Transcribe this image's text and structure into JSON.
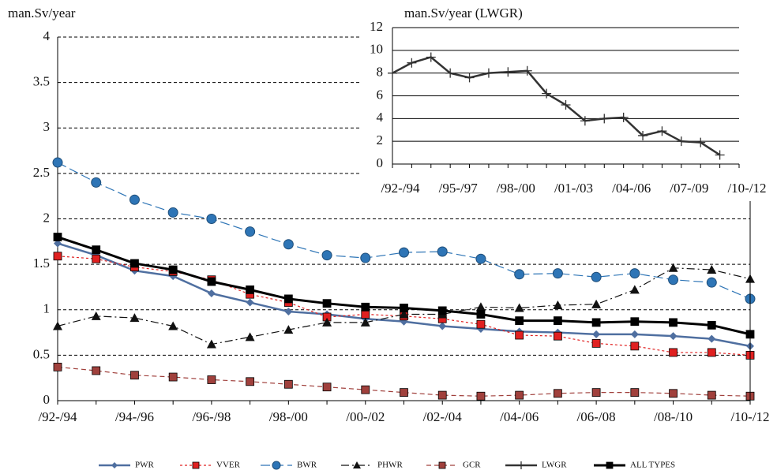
{
  "chart_data": [
    {
      "type": "line",
      "y_label": "man.Sv/year",
      "categories": [
        "/92-/94",
        null,
        "/94-/96",
        null,
        "/96-/98",
        null,
        "/98-/00",
        null,
        "/00-/02",
        null,
        "/02-/04",
        null,
        "/04-/06",
        null,
        "/06-/08",
        null,
        "/08-/10",
        null,
        "/10-/12"
      ],
      "ylim": [
        0,
        4
      ],
      "yticks": [
        0,
        0.5,
        1,
        1.5,
        2,
        2.5,
        3,
        3.5,
        4
      ],
      "grid": true,
      "series": [
        {
          "name": "PWR",
          "color": "#4f6fa0",
          "marker": "diamond",
          "dash": "solid",
          "values": [
            1.73,
            1.6,
            1.43,
            1.37,
            1.18,
            1.08,
            0.98,
            0.95,
            0.9,
            0.87,
            0.82,
            0.79,
            0.76,
            0.75,
            0.73,
            0.73,
            0.71,
            0.68,
            0.6
          ]
        },
        {
          "name": "VVER",
          "color": "#e02020",
          "marker": "square",
          "dash": "short",
          "values": [
            1.59,
            1.56,
            1.47,
            1.42,
            1.33,
            1.17,
            1.08,
            0.92,
            0.95,
            0.93,
            0.9,
            0.84,
            0.72,
            0.71,
            0.63,
            0.6,
            0.53,
            0.53,
            0.5
          ]
        },
        {
          "name": "BWR",
          "color": "#2e75b6",
          "marker": "circle",
          "dash": "long",
          "values": [
            2.62,
            2.4,
            2.21,
            2.07,
            2.0,
            1.86,
            1.72,
            1.6,
            1.57,
            1.63,
            1.64,
            1.56,
            1.39,
            1.4,
            1.36,
            1.4,
            1.33,
            1.3,
            1.12
          ]
        },
        {
          "name": "PHWR",
          "color": "#111111",
          "marker": "triangle",
          "dash": "dashdot",
          "values": [
            0.82,
            0.93,
            0.91,
            0.82,
            0.62,
            0.7,
            0.78,
            0.86,
            0.86,
            0.95,
            0.95,
            1.03,
            1.02,
            1.05,
            1.06,
            1.22,
            1.46,
            1.44,
            1.34
          ]
        },
        {
          "name": "GCR",
          "color": "#a0403c",
          "marker": "square",
          "dash": "medium",
          "values": [
            0.37,
            0.33,
            0.28,
            0.26,
            0.23,
            0.21,
            0.18,
            0.15,
            0.12,
            0.09,
            0.06,
            0.05,
            0.06,
            0.08,
            0.09,
            0.09,
            0.08,
            0.06,
            0.05
          ]
        },
        {
          "name": "ALL TYPES",
          "color": "#000000",
          "marker": "square",
          "dash": "bold",
          "values": [
            1.8,
            1.66,
            1.51,
            1.44,
            1.31,
            1.22,
            1.12,
            1.07,
            1.03,
            1.02,
            0.99,
            0.95,
            0.88,
            0.88,
            0.86,
            0.87,
            0.86,
            0.83,
            0.73
          ]
        }
      ]
    },
    {
      "type": "line",
      "y_label": "man.Sv/year (LWGR)",
      "categories": [
        "/92-/94",
        null,
        null,
        "/95-/97",
        null,
        null,
        "/98-/00",
        null,
        null,
        "/01-/03",
        null,
        null,
        "/04-/06",
        null,
        null,
        "/07-/09",
        null,
        null,
        "/10-/12"
      ],
      "ylim": [
        0,
        12
      ],
      "yticks": [
        0,
        2,
        4,
        6,
        8,
        10,
        12
      ],
      "grid": true,
      "series": [
        {
          "name": "LWGR",
          "color": "#333333",
          "marker": "plus",
          "dash": "solid",
          "values": [
            8,
            8.9,
            9.4,
            8,
            7.6,
            8,
            8.1,
            8.2,
            6.2,
            5.2,
            3.8,
            4,
            4.1,
            2.5,
            2.9,
            2,
            1.9,
            0.8,
            null
          ]
        }
      ]
    }
  ]
}
